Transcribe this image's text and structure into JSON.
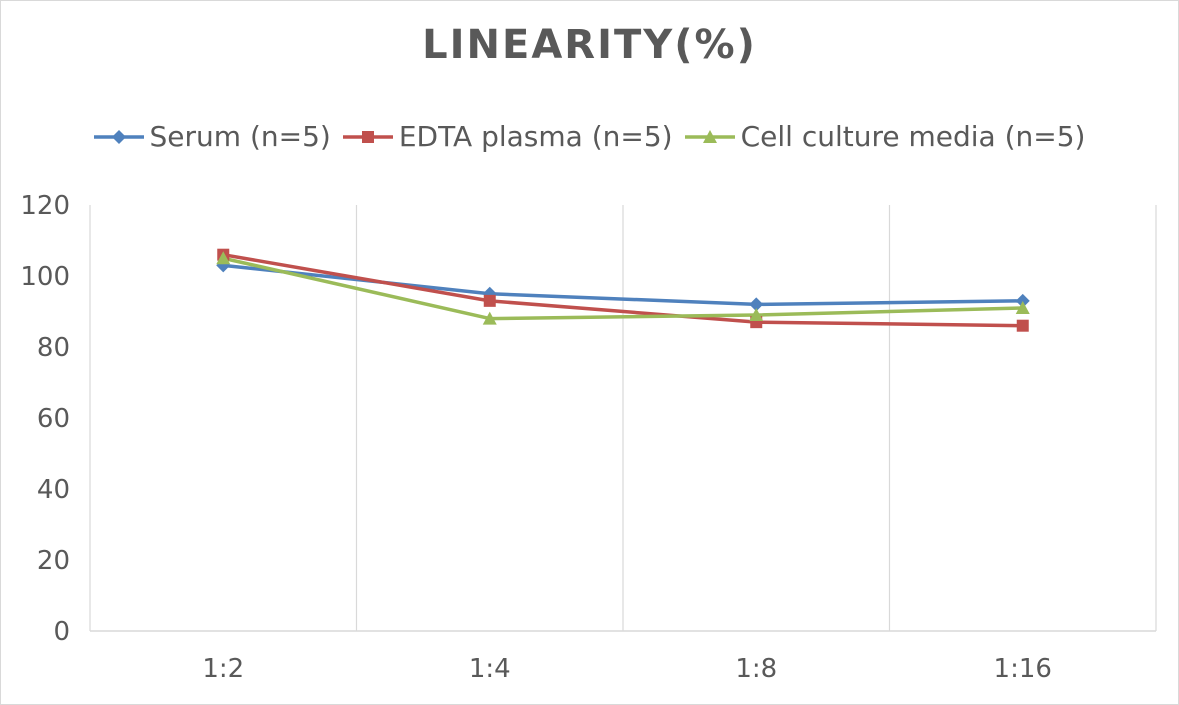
{
  "chart_data": {
    "type": "line",
    "title": "LINEARITY(%)",
    "categories": [
      "1:2",
      "1:4",
      "1:8",
      "1:16"
    ],
    "series": [
      {
        "name": "Serum (n=5)",
        "values": [
          103,
          95,
          92,
          93
        ],
        "color": "#4f81bd",
        "marker": "diamond"
      },
      {
        "name": "EDTA plasma (n=5)",
        "values": [
          106,
          93,
          87,
          86
        ],
        "color": "#c0504d",
        "marker": "square"
      },
      {
        "name": "Cell culture media (n=5)",
        "values": [
          105,
          88,
          89,
          91
        ],
        "color": "#9bbb59",
        "marker": "triangle"
      }
    ],
    "ylim": [
      0,
      120
    ],
    "yticks": [
      "0",
      "20",
      "40",
      "60",
      "80",
      "100",
      "120"
    ],
    "xlabel": "",
    "ylabel": "",
    "grid": "vertical",
    "legend": "top"
  }
}
